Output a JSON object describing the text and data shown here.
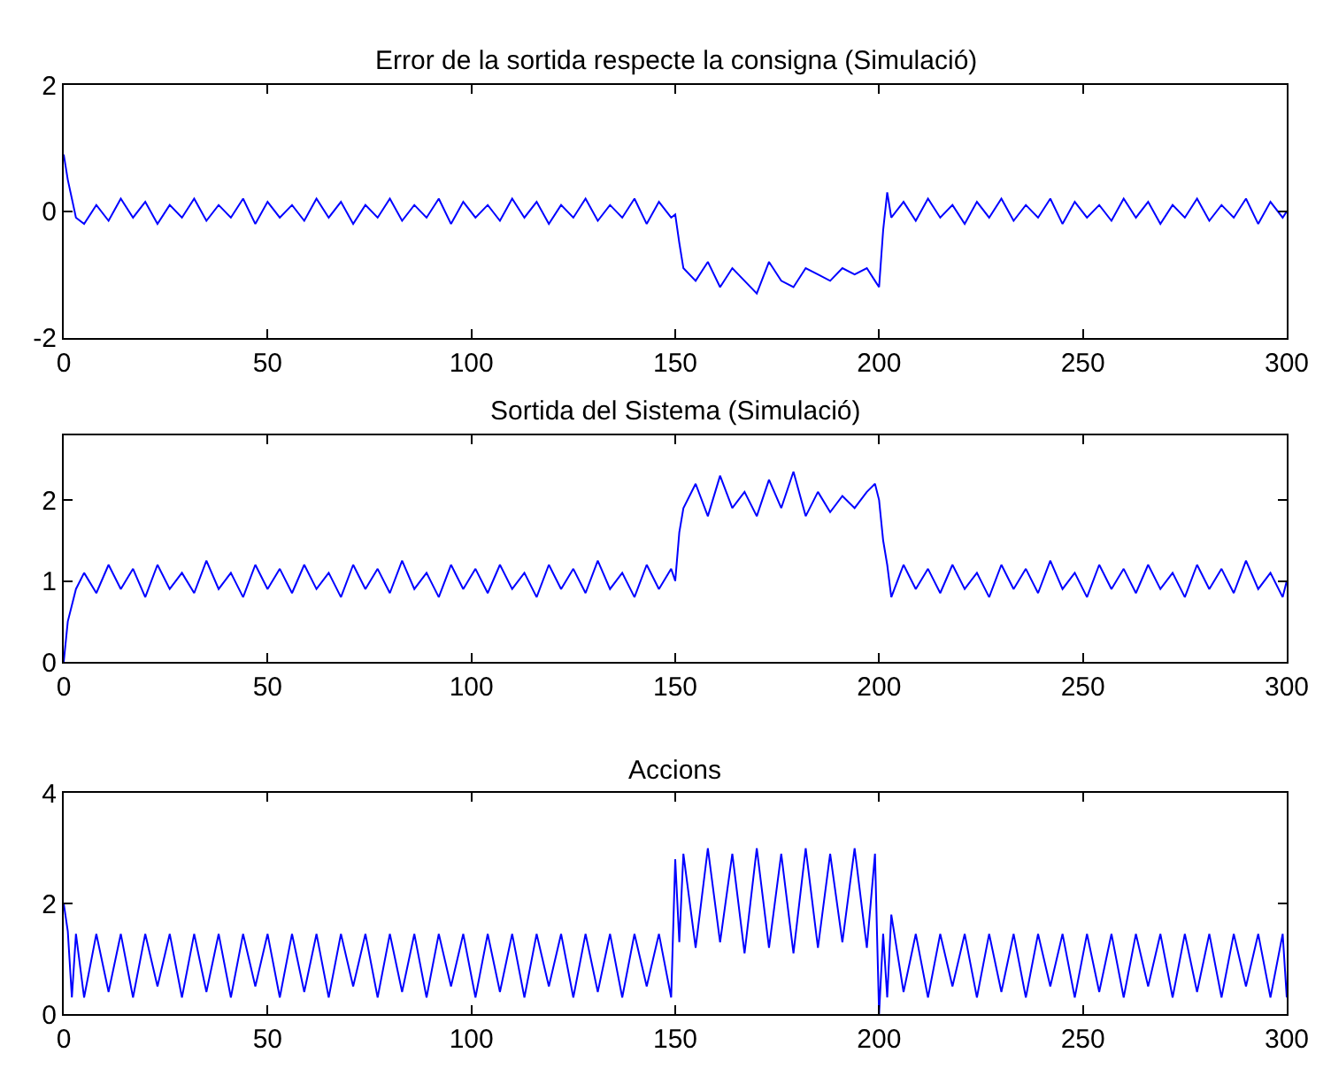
{
  "chart_data": [
    {
      "type": "line",
      "title": "Error de la sortida respecte la consigna (Simulació)",
      "color": "#0000ff",
      "grid": false,
      "legend": false,
      "marker": "none",
      "line_style": "solid",
      "x": [
        0,
        1,
        2,
        3,
        5,
        8,
        11,
        14,
        17,
        20,
        23,
        26,
        29,
        32,
        35,
        38,
        41,
        44,
        47,
        50,
        53,
        56,
        59,
        62,
        65,
        68,
        71,
        74,
        77,
        80,
        83,
        86,
        89,
        92,
        95,
        98,
        101,
        104,
        107,
        110,
        113,
        116,
        119,
        122,
        125,
        128,
        131,
        134,
        137,
        140,
        143,
        146,
        149,
        150,
        151,
        152,
        155,
        158,
        161,
        164,
        167,
        170,
        173,
        176,
        179,
        182,
        185,
        188,
        191,
        194,
        197,
        199,
        200,
        201,
        202,
        203,
        206,
        209,
        212,
        215,
        218,
        221,
        224,
        227,
        230,
        233,
        236,
        239,
        242,
        245,
        248,
        251,
        254,
        257,
        260,
        263,
        266,
        269,
        272,
        275,
        278,
        281,
        284,
        287,
        290,
        293,
        296,
        299,
        300
      ],
      "values": [
        0.9,
        0.5,
        0.2,
        -0.1,
        -0.2,
        0.1,
        -0.15,
        0.2,
        -0.1,
        0.15,
        -0.2,
        0.1,
        -0.1,
        0.2,
        -0.15,
        0.1,
        -0.1,
        0.2,
        -0.2,
        0.15,
        -0.1,
        0.1,
        -0.15,
        0.2,
        -0.1,
        0.15,
        -0.2,
        0.1,
        -0.1,
        0.2,
        -0.15,
        0.1,
        -0.1,
        0.2,
        -0.2,
        0.15,
        -0.1,
        0.1,
        -0.15,
        0.2,
        -0.1,
        0.15,
        -0.2,
        0.1,
        -0.1,
        0.2,
        -0.15,
        0.1,
        -0.1,
        0.2,
        -0.2,
        0.15,
        -0.1,
        -0.05,
        -0.5,
        -0.9,
        -1.1,
        -0.8,
        -1.2,
        -0.9,
        -1.1,
        -1.3,
        -0.8,
        -1.1,
        -1.2,
        -0.9,
        -1.0,
        -1.1,
        -0.9,
        -1.0,
        -0.9,
        -1.1,
        -1.2,
        -0.3,
        0.3,
        -0.1,
        0.15,
        -0.15,
        0.2,
        -0.1,
        0.1,
        -0.2,
        0.15,
        -0.1,
        0.2,
        -0.15,
        0.1,
        -0.1,
        0.2,
        -0.2,
        0.15,
        -0.1,
        0.1,
        -0.15,
        0.2,
        -0.1,
        0.15,
        -0.2,
        0.1,
        -0.1,
        0.2,
        -0.15,
        0.1,
        -0.1,
        0.2,
        -0.2,
        0.15,
        -0.1,
        0.0
      ],
      "xlim": [
        0,
        300
      ],
      "xticks": [
        0,
        50,
        100,
        150,
        200,
        250,
        300
      ],
      "ylim": [
        -2,
        2
      ],
      "yticks": [
        -2,
        0,
        2
      ]
    },
    {
      "type": "line",
      "title": "Sortida del Sistema (Simulació)",
      "color": "#0000ff",
      "grid": false,
      "legend": false,
      "marker": "none",
      "line_style": "solid",
      "x": [
        0,
        1,
        2,
        3,
        5,
        8,
        11,
        14,
        17,
        20,
        23,
        26,
        29,
        32,
        35,
        38,
        41,
        44,
        47,
        50,
        53,
        56,
        59,
        62,
        65,
        68,
        71,
        74,
        77,
        80,
        83,
        86,
        89,
        92,
        95,
        98,
        101,
        104,
        107,
        110,
        113,
        116,
        119,
        122,
        125,
        128,
        131,
        134,
        137,
        140,
        143,
        146,
        149,
        150,
        151,
        152,
        155,
        158,
        161,
        164,
        167,
        170,
        173,
        176,
        179,
        182,
        185,
        188,
        191,
        194,
        197,
        199,
        200,
        201,
        202,
        203,
        206,
        209,
        212,
        215,
        218,
        221,
        224,
        227,
        230,
        233,
        236,
        239,
        242,
        245,
        248,
        251,
        254,
        257,
        260,
        263,
        266,
        269,
        272,
        275,
        278,
        281,
        284,
        287,
        290,
        293,
        296,
        299,
        300
      ],
      "values": [
        0.0,
        0.5,
        0.7,
        0.9,
        1.1,
        0.85,
        1.2,
        0.9,
        1.15,
        0.8,
        1.2,
        0.9,
        1.1,
        0.85,
        1.25,
        0.9,
        1.1,
        0.8,
        1.2,
        0.9,
        1.15,
        0.85,
        1.2,
        0.9,
        1.1,
        0.8,
        1.2,
        0.9,
        1.15,
        0.85,
        1.25,
        0.9,
        1.1,
        0.8,
        1.2,
        0.9,
        1.15,
        0.85,
        1.2,
        0.9,
        1.1,
        0.8,
        1.2,
        0.9,
        1.15,
        0.85,
        1.25,
        0.9,
        1.1,
        0.8,
        1.2,
        0.9,
        1.15,
        1.0,
        1.6,
        1.9,
        2.2,
        1.8,
        2.3,
        1.9,
        2.1,
        1.8,
        2.25,
        1.9,
        2.35,
        1.8,
        2.1,
        1.85,
        2.05,
        1.9,
        2.1,
        2.2,
        2.0,
        1.5,
        1.2,
        0.8,
        1.2,
        0.9,
        1.15,
        0.85,
        1.2,
        0.9,
        1.1,
        0.8,
        1.2,
        0.9,
        1.15,
        0.85,
        1.25,
        0.9,
        1.1,
        0.8,
        1.2,
        0.9,
        1.15,
        0.85,
        1.2,
        0.9,
        1.1,
        0.8,
        1.2,
        0.9,
        1.15,
        0.85,
        1.25,
        0.9,
        1.1,
        0.8,
        1.0
      ],
      "xlim": [
        0,
        300
      ],
      "xticks": [
        0,
        50,
        100,
        150,
        200,
        250,
        300
      ],
      "ylim": [
        0,
        2.8
      ],
      "yticks": [
        0,
        1,
        2
      ]
    },
    {
      "type": "line",
      "title": "Accions",
      "color": "#0000ff",
      "grid": false,
      "legend": false,
      "marker": "none",
      "line_style": "solid",
      "x": [
        0,
        1,
        2,
        3,
        5,
        8,
        11,
        14,
        17,
        20,
        23,
        26,
        29,
        32,
        35,
        38,
        41,
        44,
        47,
        50,
        53,
        56,
        59,
        62,
        65,
        68,
        71,
        74,
        77,
        80,
        83,
        86,
        89,
        92,
        95,
        98,
        101,
        104,
        107,
        110,
        113,
        116,
        119,
        122,
        125,
        128,
        131,
        134,
        137,
        140,
        143,
        146,
        149,
        150,
        151,
        152,
        155,
        158,
        161,
        164,
        167,
        170,
        173,
        176,
        179,
        182,
        185,
        188,
        191,
        194,
        197,
        199,
        200,
        201,
        202,
        203,
        206,
        209,
        212,
        215,
        218,
        221,
        224,
        227,
        230,
        233,
        236,
        239,
        242,
        245,
        248,
        251,
        254,
        257,
        260,
        263,
        266,
        269,
        272,
        275,
        278,
        281,
        284,
        287,
        290,
        293,
        296,
        299,
        300
      ],
      "values": [
        2.0,
        1.5,
        0.3,
        1.45,
        0.3,
        1.45,
        0.4,
        1.45,
        0.3,
        1.45,
        0.5,
        1.45,
        0.3,
        1.45,
        0.4,
        1.45,
        0.3,
        1.45,
        0.5,
        1.45,
        0.3,
        1.45,
        0.4,
        1.45,
        0.3,
        1.45,
        0.5,
        1.45,
        0.3,
        1.45,
        0.4,
        1.45,
        0.3,
        1.45,
        0.5,
        1.45,
        0.3,
        1.45,
        0.4,
        1.45,
        0.3,
        1.45,
        0.5,
        1.45,
        0.3,
        1.45,
        0.4,
        1.45,
        0.3,
        1.45,
        0.5,
        1.45,
        0.3,
        2.8,
        1.3,
        2.9,
        1.2,
        3.0,
        1.3,
        2.9,
        1.1,
        3.0,
        1.2,
        2.9,
        1.1,
        3.0,
        1.2,
        2.9,
        1.3,
        3.0,
        1.2,
        2.9,
        0.0,
        1.45,
        0.3,
        1.8,
        0.4,
        1.45,
        0.3,
        1.45,
        0.5,
        1.45,
        0.3,
        1.45,
        0.4,
        1.45,
        0.3,
        1.45,
        0.5,
        1.45,
        0.3,
        1.45,
        0.4,
        1.45,
        0.3,
        1.45,
        0.5,
        1.45,
        0.3,
        1.45,
        0.4,
        1.45,
        0.3,
        1.45,
        0.5,
        1.45,
        0.3,
        1.45,
        0.3
      ],
      "xlim": [
        0,
        300
      ],
      "xticks": [
        0,
        50,
        100,
        150,
        200,
        250,
        300
      ],
      "ylim": [
        0,
        4
      ],
      "yticks": [
        0,
        2,
        4
      ]
    }
  ]
}
